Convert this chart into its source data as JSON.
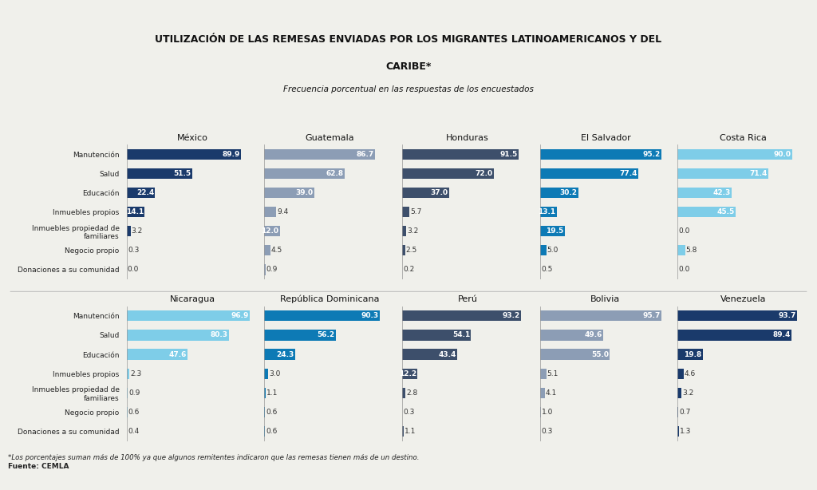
{
  "title_line1": "UTILIZACIÓN DE LAS REMESAS ENVIADAS POR LOS MIGRANTES LATINOAMERICANOS Y DEL",
  "title_line2": "CARIBE*",
  "subtitle": "Frecuencia porcentual en las respuestas de los encuestados",
  "categories": [
    "Manutención",
    "Salud",
    "Educación",
    "Inmuebles propios",
    "Inmuebles propiedad de\nfamiliares",
    "Negocio propio",
    "Donaciones a su comunidad"
  ],
  "footnote": "*Los porcentajes suman más de 100% ya que algunos remitentes indicaron que las remesas tienen más de un destino.",
  "source": "Fuente: CEMLA",
  "countries_top": [
    "México",
    "Guatemala",
    "Honduras",
    "El Salvador",
    "Costa Rica"
  ],
  "colors_top": [
    "#1a3a6b",
    "#8c9db5",
    "#3d4f6b",
    "#0d7ab5",
    "#7ecde8"
  ],
  "data_top": {
    "México": [
      89.9,
      51.5,
      22.4,
      14.1,
      3.2,
      0.3,
      0.0
    ],
    "Guatemala": [
      86.7,
      62.8,
      39.0,
      9.4,
      12.0,
      4.5,
      0.9
    ],
    "Honduras": [
      91.5,
      72.0,
      37.0,
      5.7,
      3.2,
      2.5,
      0.2
    ],
    "El Salvador": [
      95.2,
      77.4,
      30.2,
      13.1,
      19.5,
      5.0,
      0.5
    ],
    "Costa Rica": [
      90.0,
      71.4,
      42.3,
      45.5,
      0.0,
      5.8,
      0.0
    ]
  },
  "countries_bot": [
    "Nicaragua",
    "República Dominicana",
    "Perú",
    "Bolivia",
    "Venezuela"
  ],
  "colors_bot": [
    "#7ecde8",
    "#0d7ab5",
    "#3d4f6b",
    "#8c9db5",
    "#1a3a6b"
  ],
  "data_bot": {
    "Nicaragua": [
      96.9,
      80.3,
      47.6,
      2.3,
      0.9,
      0.6,
      0.4
    ],
    "República Dominicana": [
      90.3,
      56.2,
      24.3,
      3.0,
      1.1,
      0.6,
      0.6
    ],
    "Perú": [
      93.2,
      54.1,
      43.4,
      12.2,
      2.8,
      0.3,
      1.1
    ],
    "Bolivia": [
      95.7,
      49.6,
      55.0,
      5.1,
      4.1,
      1.0,
      0.3
    ],
    "Venezuela": [
      93.7,
      89.4,
      19.8,
      4.6,
      3.2,
      0.7,
      1.3
    ]
  },
  "bg_color": "#f0f0eb",
  "bar_height": 0.55
}
